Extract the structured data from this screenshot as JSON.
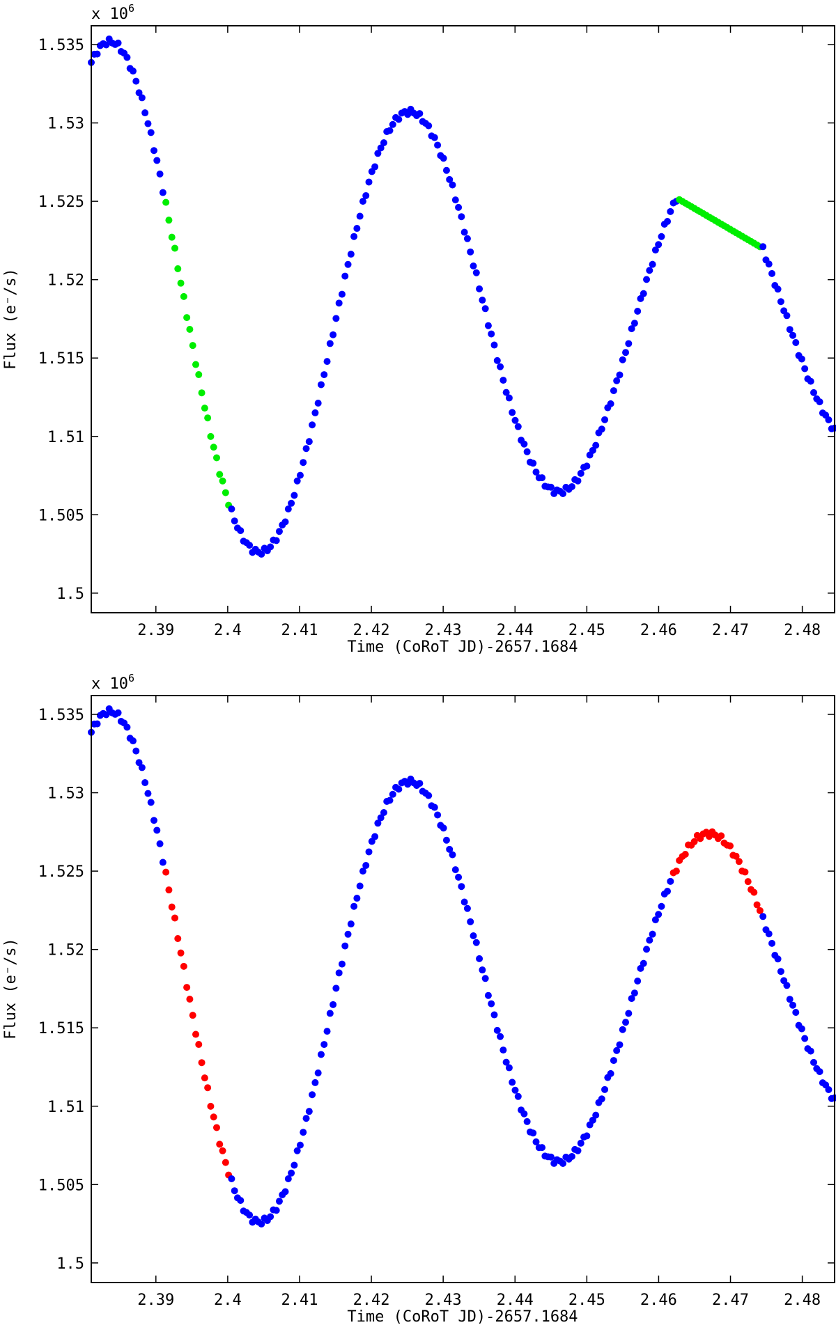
{
  "chart_data": [
    {
      "type": "scatter",
      "xlabel": "Time (CoRoT JD)-2657.1684",
      "ylabel": "Flux (e⁻/s)",
      "y_multiplier_label": "x 10",
      "y_multiplier_exponent": "6",
      "xlim": [
        2.381,
        2.4845
      ],
      "ylim": [
        1.49875,
        1.5362
      ],
      "x_ticks": [
        2.39,
        2.4,
        2.41,
        2.42,
        2.43,
        2.44,
        2.45,
        2.46,
        2.47,
        2.48
      ],
      "x_tick_labels": [
        "2.39",
        "2.4",
        "2.41",
        "2.42",
        "2.43",
        "2.44",
        "2.45",
        "2.46",
        "2.47",
        "2.48"
      ],
      "y_ticks": [
        1.5,
        1.505,
        1.51,
        1.515,
        1.52,
        1.525,
        1.53,
        1.535
      ],
      "y_tick_labels": [
        "1.5",
        "1.505",
        "1.51",
        "1.515",
        "1.52",
        "1.525",
        "1.53",
        "1.535"
      ],
      "grid": false,
      "legend": "none",
      "model": {
        "t0": 2.381,
        "t1": 2.4845,
        "n_points": 250,
        "mean": 1.5177,
        "amplitude": 0.01747,
        "peak_time": 2.3839,
        "period": 0.0417,
        "damping": 0.295,
        "highlight_segments": [
          {
            "x_start": 2.391,
            "x_end": 2.4003,
            "kind": "observed"
          },
          {
            "x_start": 2.4625,
            "x_end": 2.4745,
            "kind": "linear_gap"
          }
        ]
      },
      "series": [
        {
          "color": "#0000ff",
          "role": "base"
        },
        {
          "color": "#00ee00",
          "role": "highlight"
        }
      ]
    },
    {
      "type": "scatter",
      "xlabel": "Time (CoRoT JD)-2657.1684",
      "ylabel": "Flux (e⁻/s)",
      "y_multiplier_label": "x 10",
      "y_multiplier_exponent": "6",
      "xlim": [
        2.381,
        2.4845
      ],
      "ylim": [
        1.49875,
        1.5362
      ],
      "x_ticks": [
        2.39,
        2.4,
        2.41,
        2.42,
        2.43,
        2.44,
        2.45,
        2.46,
        2.47,
        2.48
      ],
      "x_tick_labels": [
        "2.39",
        "2.4",
        "2.41",
        "2.42",
        "2.43",
        "2.44",
        "2.45",
        "2.46",
        "2.47",
        "2.48"
      ],
      "y_ticks": [
        1.5,
        1.505,
        1.51,
        1.515,
        1.52,
        1.525,
        1.53,
        1.535
      ],
      "y_tick_labels": [
        "1.5",
        "1.505",
        "1.51",
        "1.515",
        "1.52",
        "1.525",
        "1.53",
        "1.535"
      ],
      "grid": false,
      "legend": "none",
      "model": {
        "t0": 2.381,
        "t1": 2.4845,
        "n_points": 250,
        "mean": 1.5177,
        "amplitude": 0.01747,
        "peak_time": 2.3839,
        "period": 0.0417,
        "damping": 0.295,
        "highlight_segments": [
          {
            "x_start": 2.391,
            "x_end": 2.4003,
            "kind": "observed"
          },
          {
            "x_start": 2.4617,
            "x_end": 2.4745,
            "kind": "model"
          }
        ]
      },
      "series": [
        {
          "color": "#0000ff",
          "role": "base"
        },
        {
          "color": "#ff0000",
          "role": "highlight"
        }
      ]
    }
  ]
}
